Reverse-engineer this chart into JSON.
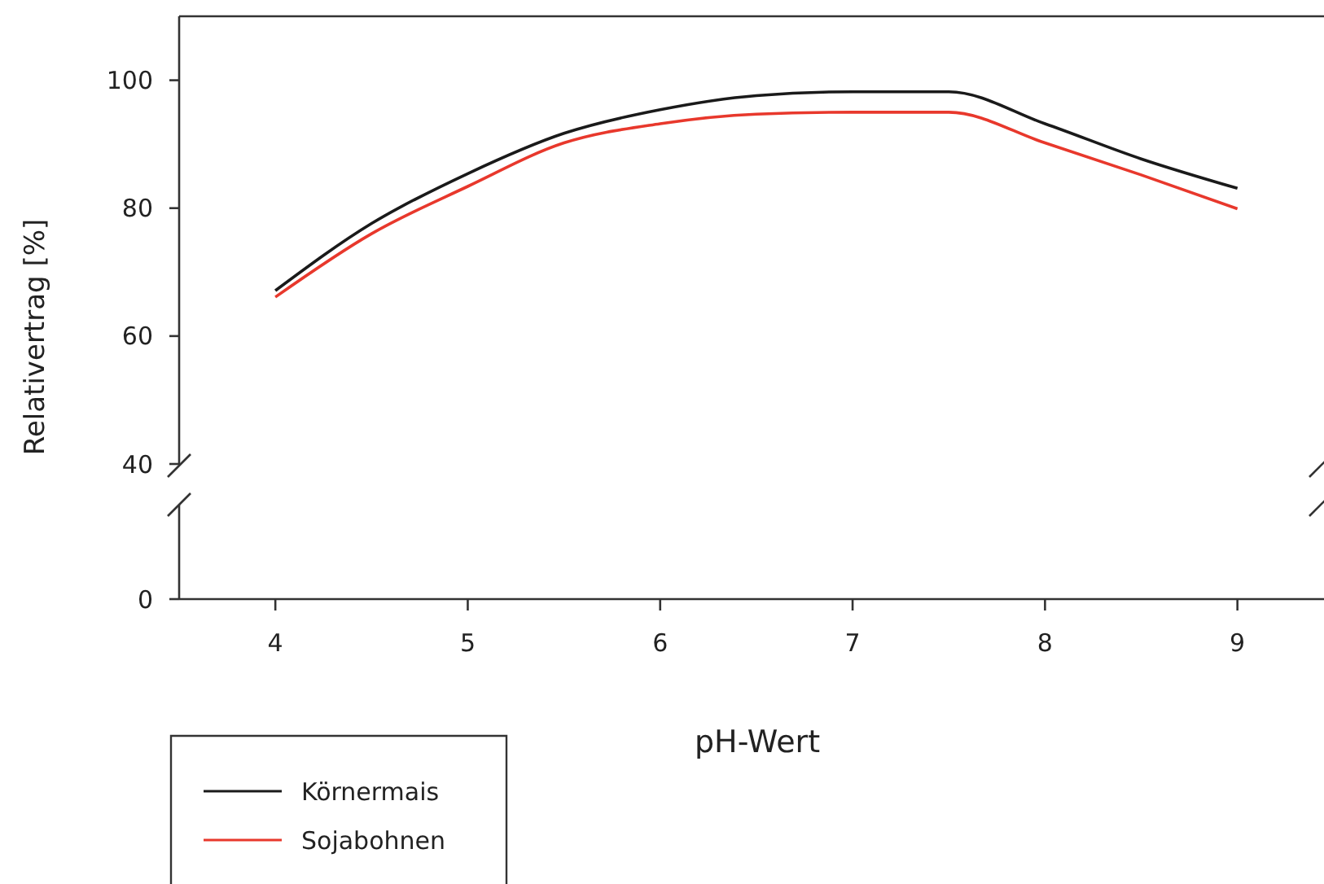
{
  "chart_data": [
    {
      "type": "line",
      "xlabel": "pH-Wert",
      "ylabel": "Relativertrag [%]",
      "x": [
        4,
        4.5,
        5,
        5.5,
        6,
        6.5,
        7,
        7.5,
        8,
        8.5,
        9
      ],
      "series": [
        {
          "name": "Körnermais",
          "color": "#1a1a1a",
          "values": [
            67.1,
            77.6,
            85.4,
            91.7,
            95.4,
            97.6,
            98.2,
            98.2,
            93.2,
            87.7,
            83.1
          ]
        },
        {
          "name": "Sojabohnen",
          "color": "#e8382c",
          "values": [
            66.1,
            76,
            83.4,
            90.2,
            93.2,
            94.7,
            95,
            95,
            90.2,
            85.2,
            79.9
          ]
        }
      ],
      "xlim": [
        3.5,
        9.45
      ],
      "xticks": [
        4,
        5,
        6,
        7,
        8,
        9
      ],
      "ylim": [
        40,
        110
      ],
      "yticks": [
        40,
        60,
        80,
        100
      ],
      "grid": false,
      "legend": "bottom left",
      "marker": "none",
      "line_style": "solid"
    },
    {
      "type": "other",
      "annotations": [
        "0"
      ]
    }
  ]
}
